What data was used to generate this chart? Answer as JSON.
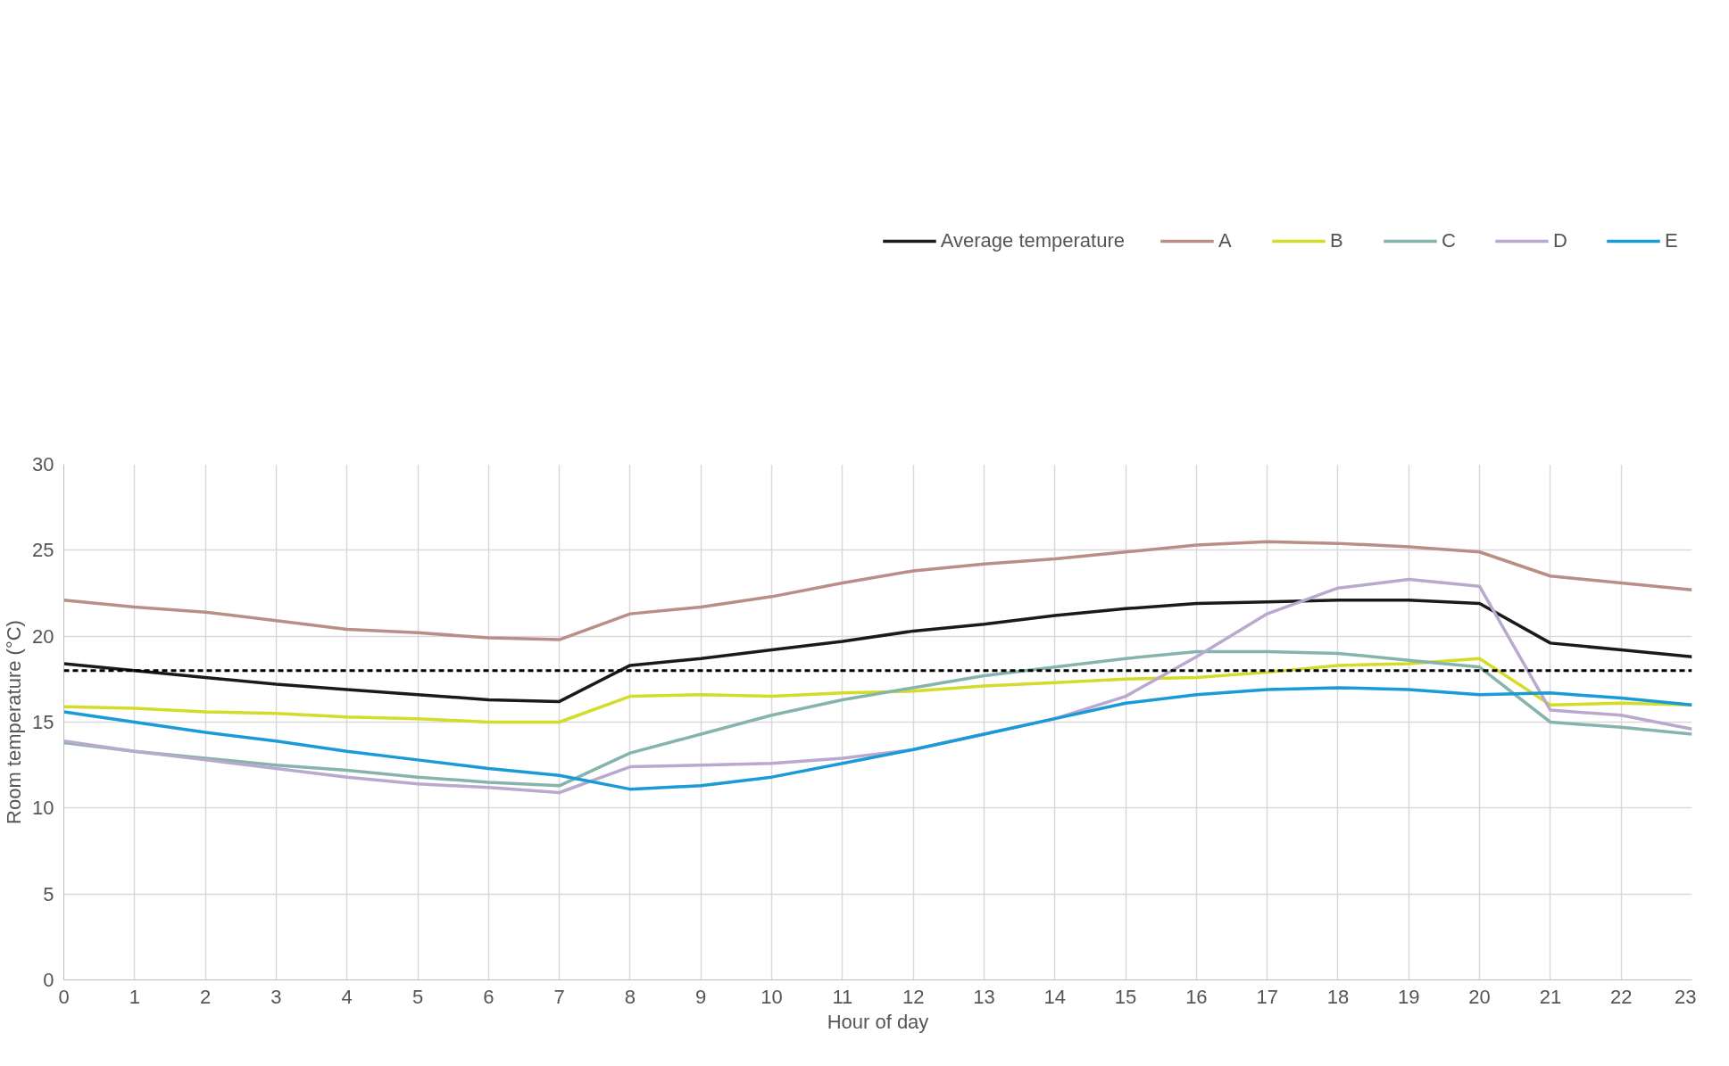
{
  "chart_data": {
    "type": "line",
    "xlabel": "Hour of day",
    "ylabel": "Room temperature (°C)",
    "x": [
      0,
      1,
      2,
      3,
      4,
      5,
      6,
      7,
      8,
      9,
      10,
      11,
      12,
      13,
      14,
      15,
      16,
      17,
      18,
      19,
      20,
      21,
      22,
      23
    ],
    "xlim": [
      0,
      23
    ],
    "xticks": [
      0,
      1,
      2,
      3,
      4,
      5,
      6,
      7,
      8,
      9,
      10,
      11,
      12,
      13,
      14,
      15,
      16,
      17,
      18,
      19,
      20,
      21,
      22,
      23
    ],
    "ylim": [
      0,
      30
    ],
    "yticks": [
      0,
      5,
      10,
      15,
      20,
      25,
      30
    ],
    "grid": true,
    "legend": "top",
    "line_style": "solid",
    "marker": "none",
    "series": [
      {
        "name": "Average temperature",
        "color": "#1a1a1a",
        "values": [
          18.4,
          18.0,
          17.6,
          17.2,
          16.9,
          16.6,
          16.3,
          16.2,
          18.3,
          18.7,
          19.2,
          19.7,
          20.3,
          20.7,
          21.2,
          21.6,
          21.9,
          22.0,
          22.1,
          22.1,
          21.9,
          19.6,
          19.2,
          18.8
        ]
      },
      {
        "name": "A",
        "color": "#b88e86",
        "values": [
          22.1,
          21.7,
          21.4,
          20.9,
          20.4,
          20.2,
          19.9,
          19.8,
          21.3,
          21.7,
          22.3,
          23.1,
          23.8,
          24.2,
          24.5,
          24.9,
          25.3,
          25.5,
          25.4,
          25.2,
          24.9,
          23.5,
          23.1,
          22.7
        ]
      },
      {
        "name": "B",
        "color": "#d4dc2a",
        "values": [
          15.9,
          15.8,
          15.6,
          15.5,
          15.3,
          15.2,
          15.0,
          15.0,
          16.5,
          16.6,
          16.5,
          16.7,
          16.8,
          17.1,
          17.3,
          17.5,
          17.6,
          17.9,
          18.3,
          18.4,
          18.7,
          16.0,
          16.1,
          16.0
        ]
      },
      {
        "name": "C",
        "color": "#86b4ad",
        "values": [
          13.8,
          13.3,
          12.9,
          12.5,
          12.2,
          11.8,
          11.5,
          11.3,
          13.2,
          14.3,
          15.4,
          16.3,
          17.0,
          17.7,
          18.2,
          18.7,
          19.1,
          19.1,
          19.0,
          18.6,
          18.2,
          15.0,
          14.7,
          14.3
        ]
      },
      {
        "name": "D",
        "color": "#b9a9cf",
        "values": [
          13.9,
          13.3,
          12.8,
          12.3,
          11.8,
          11.4,
          11.2,
          10.9,
          12.4,
          12.5,
          12.6,
          12.9,
          13.4,
          14.3,
          15.2,
          16.5,
          18.8,
          21.3,
          22.8,
          23.3,
          22.9,
          15.7,
          15.4,
          14.6
        ]
      },
      {
        "name": "E",
        "color": "#1a9ad6",
        "values": [
          15.6,
          15.0,
          14.4,
          13.9,
          13.3,
          12.8,
          12.3,
          11.9,
          11.1,
          11.3,
          11.8,
          12.6,
          13.4,
          14.3,
          15.2,
          16.1,
          16.6,
          16.9,
          17.0,
          16.9,
          16.6,
          16.7,
          16.4,
          16.0
        ]
      }
    ],
    "ref_lines": [
      {
        "axis": "y",
        "value": 18,
        "color": "#000000",
        "line_style": "dashed"
      }
    ]
  }
}
